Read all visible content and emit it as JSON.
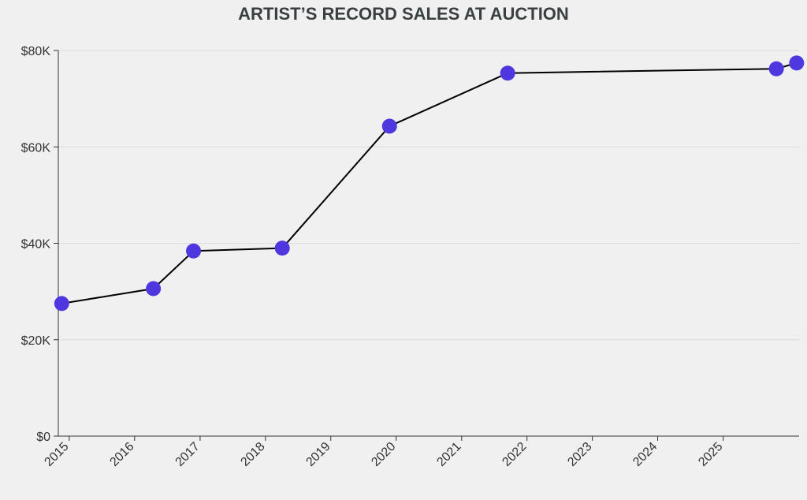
{
  "chart_data": {
    "type": "line",
    "title": "ARTIST’S RECORD SALES AT AUCTION",
    "xlabel": "",
    "ylabel": "",
    "x_axis": {
      "type": "date",
      "range": [
        "2014-11-01",
        "2026-03-01"
      ],
      "ticks": [
        {
          "date": "2015-01-01",
          "label": "2015"
        },
        {
          "date": "2016-01-01",
          "label": "2016"
        },
        {
          "date": "2017-01-01",
          "label": "2017"
        },
        {
          "date": "2018-01-01",
          "label": "2018"
        },
        {
          "date": "2019-01-01",
          "label": "2019"
        },
        {
          "date": "2020-01-01",
          "label": "2020"
        },
        {
          "date": "2021-01-01",
          "label": "2021"
        },
        {
          "date": "2022-01-01",
          "label": "2022"
        },
        {
          "date": "2023-01-01",
          "label": "2023"
        },
        {
          "date": "2024-01-01",
          "label": "2024"
        },
        {
          "date": "2025-01-01",
          "label": "2025"
        }
      ]
    },
    "y_axis": {
      "range": [
        0,
        80000
      ],
      "ticks": [
        {
          "value": 0,
          "label": "$0"
        },
        {
          "value": 20000,
          "label": "$20K"
        },
        {
          "value": 40000,
          "label": "$40K"
        },
        {
          "value": 60000,
          "label": "$60K"
        },
        {
          "value": 80000,
          "label": "$80K"
        }
      ]
    },
    "grid": true,
    "series": [
      {
        "line_color": "#000000",
        "marker_color": "#4f37e0",
        "points": [
          {
            "x": "2014-11-20",
            "y": 27500
          },
          {
            "x": "2016-04-15",
            "y": 30600
          },
          {
            "x": "2016-11-25",
            "y": 38400
          },
          {
            "x": "2018-04-05",
            "y": 39000
          },
          {
            "x": "2019-11-25",
            "y": 64300
          },
          {
            "x": "2021-09-15",
            "y": 75300
          },
          {
            "x": "2025-10-25",
            "y": 76200
          },
          {
            "x": "2026-02-15",
            "y": 77400
          }
        ]
      }
    ]
  }
}
